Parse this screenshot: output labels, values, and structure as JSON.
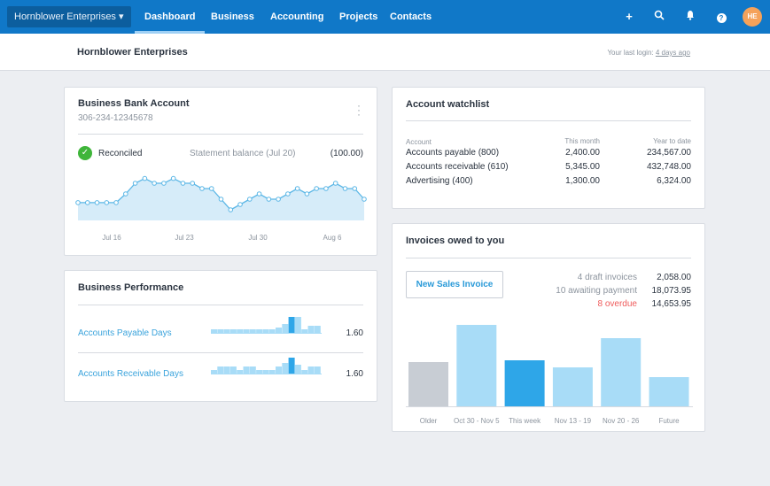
{
  "nav": {
    "org": "Hornblower Enterprises",
    "tabs": [
      "Dashboard",
      "Business",
      "Accounting",
      "Projects",
      "Contacts"
    ],
    "active": "Dashboard",
    "icons": [
      "plus-icon",
      "search-icon",
      "bell-icon",
      "help-icon"
    ],
    "avatar": "HE",
    "color": "#1078c8"
  },
  "subheader": {
    "title": "Hornblower Enterprises",
    "last_login_label": "Your last login:",
    "last_login": "4 days ago"
  },
  "bank": {
    "title": "Business Bank Account",
    "number": "306-234-12345678",
    "status": "Reconciled",
    "statement_label": "Statement balance (Jul 20)",
    "statement_value": "(100.00)",
    "chart_data": {
      "type": "area",
      "x_ticks": [
        "Jul 16",
        "Jul 23",
        "Jul 30",
        "Aug 6"
      ],
      "values": [
        67,
        67,
        67,
        67,
        67,
        100,
        140,
        158,
        140,
        140,
        158,
        140,
        140,
        120,
        120,
        80,
        40,
        60,
        80,
        100,
        80,
        80,
        100,
        120,
        100,
        120,
        120,
        140,
        120,
        120,
        80
      ]
    }
  },
  "performance": {
    "title": "Business Performance",
    "rows": [
      {
        "label": "Accounts Payable Days",
        "value": "1.60",
        "bars": [
          2,
          2,
          2,
          2,
          2,
          2,
          2,
          2,
          2,
          2,
          3,
          5,
          9,
          9,
          2,
          4,
          4
        ],
        "highlight": 12
      },
      {
        "label": "Accounts Receivable Days",
        "value": "1.60",
        "bars": [
          2,
          4,
          4,
          4,
          2,
          4,
          4,
          2,
          2,
          2,
          4,
          6,
          9,
          5,
          2,
          4,
          4
        ],
        "highlight": 12
      }
    ]
  },
  "watchlist": {
    "title": "Account watchlist",
    "headers": [
      "Account",
      "This month",
      "Year to date"
    ],
    "rows": [
      [
        "Accounts payable (800)",
        "2,400.00",
        "234,567.00"
      ],
      [
        "Accounts receivable (610)",
        "5,345.00",
        "432,748.00"
      ],
      [
        "Advertising (400)",
        "1,300.00",
        "6,324.00"
      ]
    ]
  },
  "invoices": {
    "title": "Invoices owed to you",
    "button": "New Sales Invoice",
    "summary": [
      {
        "label": "4 draft invoices",
        "value": "2,058.00"
      },
      {
        "label": "10 awaiting payment",
        "value": "18,073.95"
      },
      {
        "label": "8 overdue",
        "value": "14,653.95",
        "overdue": true
      }
    ],
    "chart_data": {
      "type": "bar",
      "categories": [
        "Older",
        "Oct 30 - Nov 5",
        "This week",
        "Nov 13 - 19",
        "Nov 20 - 26",
        "Future"
      ],
      "values": [
        50,
        92,
        52,
        44,
        77,
        33
      ],
      "colors": [
        "#c8cdd4",
        "#a8dcf7",
        "#2ea6e8",
        "#a8dcf7",
        "#a8dcf7",
        "#a8dcf7"
      ]
    }
  }
}
